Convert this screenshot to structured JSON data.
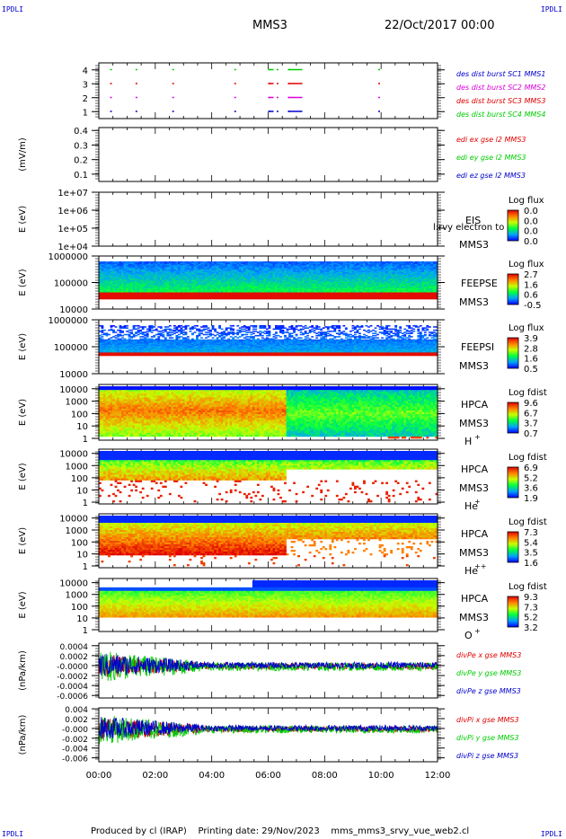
{
  "header": {
    "corner_mark": "IPDLI",
    "spacecraft": "MMS3",
    "datetime": "22/Oct/2017 00:00"
  },
  "footer": {
    "produced_by": "Produced by cl (IRAP)",
    "printing_date": "Printing date: 29/Nov/2023",
    "filename": "mms_mms3_srvy_vue_web2.cl"
  },
  "colors": {
    "red": "#e00000",
    "magenta": "#dd00dd",
    "blue": "#0000cc",
    "green": "#00cc00"
  },
  "chart_data": [
    {
      "type": "scatter",
      "panel": "burst",
      "ylabel": "",
      "ylim": [
        0.5,
        4.5
      ],
      "y_ticks": [
        "1",
        "2",
        "3",
        "4"
      ],
      "series": [
        {
          "name": "des dist burst SC1 MMS1",
          "color": "#0000cc",
          "y": 1,
          "x": [
            0.4,
            1.3,
            2.6,
            4.8,
            6.0,
            6.3,
            6.7,
            9.9
          ]
        },
        {
          "name": "des dist burst SC2 MMS2",
          "color": "#dd00dd",
          "y": 2,
          "x": [
            0.4,
            1.3,
            2.6,
            4.8,
            6.0,
            6.3,
            6.7,
            9.9
          ]
        },
        {
          "name": "des dist burst SC3 MMS3",
          "color": "#e00000",
          "y": 3,
          "x": [
            0.4,
            1.3,
            2.6,
            4.8,
            6.0,
            6.3,
            6.7,
            9.9
          ]
        },
        {
          "name": "des dist burst SC4 MMS4",
          "color": "#00cc00",
          "y": 4,
          "x": [
            0.4,
            1.3,
            2.6,
            4.8,
            6.0,
            6.3,
            6.7,
            9.9
          ]
        }
      ]
    },
    {
      "type": "line",
      "panel": "edi",
      "ylabel": "(mV/m)",
      "ylim": [
        0.05,
        0.42
      ],
      "y_ticks": [
        "0.1",
        "0.2",
        "0.3",
        "0.4"
      ],
      "series": [
        {
          "name": "edi ex gse l2 MMS3",
          "color": "#e00000"
        },
        {
          "name": "edi ey gse l2 MMS3",
          "color": "#00cc00"
        },
        {
          "name": "edi ez gse l2 MMS3",
          "color": "#0000cc"
        }
      ]
    },
    {
      "type": "heatmap",
      "panel": "eis",
      "ylabel": "E (eV)",
      "y_ticks": [
        "1e+04",
        "1e+05",
        "1e+06",
        "1e+07"
      ],
      "instrument": "EIS",
      "spacecraft": "MMS3",
      "overlay_text": "l:rvy electron to",
      "colorbar": {
        "title": "Log flux",
        "ticks": [
          "0.0",
          "0.0",
          "0.0",
          "0.0"
        ]
      }
    },
    {
      "type": "heatmap",
      "panel": "feeps_e",
      "ylabel": "E (eV)",
      "y_ticks": [
        "10000",
        "100000",
        "1000000"
      ],
      "instrument": "FEEPSE",
      "spacecraft": "MMS3",
      "colorbar": {
        "title": "Log flux",
        "ticks": [
          "2.7",
          "1.6",
          "0.6",
          "-0.5"
        ]
      }
    },
    {
      "type": "heatmap",
      "panel": "feeps_i",
      "ylabel": "E (eV)",
      "y_ticks": [
        "10000",
        "100000",
        "1000000"
      ],
      "instrument": "FEEPSI",
      "spacecraft": "MMS3",
      "colorbar": {
        "title": "Log flux",
        "ticks": [
          "3.9",
          "2.8",
          "1.6",
          "0.5"
        ]
      }
    },
    {
      "type": "heatmap",
      "panel": "hpca_h",
      "ylabel": "E (eV)",
      "y_ticks": [
        "1",
        "10",
        "100",
        "1000",
        "10000"
      ],
      "instrument": "HPCA",
      "spacecraft": "MMS3",
      "species": "H",
      "charge": "+",
      "colorbar": {
        "title": "Log fdist",
        "ticks": [
          "9.6",
          "6.7",
          "3.7",
          "0.7"
        ]
      }
    },
    {
      "type": "heatmap",
      "panel": "hpca_he",
      "ylabel": "E (eV)",
      "y_ticks": [
        "1",
        "10",
        "100",
        "1000",
        "10000"
      ],
      "instrument": "HPCA",
      "spacecraft": "MMS3",
      "species": "He",
      "charge": "+",
      "colorbar": {
        "title": "Log fdist",
        "ticks": [
          "6.9",
          "5.2",
          "3.6",
          "1.9"
        ]
      }
    },
    {
      "type": "heatmap",
      "panel": "hpca_he2",
      "ylabel": "E (eV)",
      "y_ticks": [
        "1",
        "10",
        "100",
        "1000",
        "10000"
      ],
      "instrument": "HPCA",
      "spacecraft": "MMS3",
      "species": "He",
      "charge": "++",
      "colorbar": {
        "title": "Log fdist",
        "ticks": [
          "7.3",
          "5.4",
          "3.5",
          "1.6"
        ]
      }
    },
    {
      "type": "heatmap",
      "panel": "hpca_o",
      "ylabel": "E (eV)",
      "y_ticks": [
        "1",
        "10",
        "100",
        "1000",
        "10000"
      ],
      "instrument": "HPCA",
      "spacecraft": "MMS3",
      "species": "O",
      "charge": "+",
      "colorbar": {
        "title": "Log fdist",
        "ticks": [
          "9.3",
          "7.3",
          "5.2",
          "3.2"
        ]
      }
    },
    {
      "type": "line",
      "panel": "divpe",
      "ylabel": "(nPa/km)",
      "ylim": [
        -0.00065,
        0.00045
      ],
      "y_ticks": [
        "-0.0006",
        "-0.0004",
        "-0.0002",
        "-0.0000",
        "0.0002",
        "0.0004"
      ],
      "series": [
        {
          "name": "divPe x gse MMS3",
          "color": "#e00000"
        },
        {
          "name": "divPe y gse MMS3",
          "color": "#00cc00"
        },
        {
          "name": "divPe z gse MMS3",
          "color": "#0000cc"
        }
      ]
    },
    {
      "type": "line",
      "panel": "divpi",
      "ylabel": "(nPa/km)",
      "ylim": [
        -0.0068,
        0.0042
      ],
      "y_ticks": [
        "-0.006",
        "-0.004",
        "-0.002",
        "-0.000",
        "0.002",
        "0.004"
      ],
      "series": [
        {
          "name": "divPi x gse MMS3",
          "color": "#e00000"
        },
        {
          "name": "divPi y gse MMS3",
          "color": "#00cc00"
        },
        {
          "name": "divPi z gse MMS3",
          "color": "#0000cc"
        }
      ]
    }
  ],
  "x_axis": {
    "ticks": [
      "00:00",
      "02:00",
      "04:00",
      "06:00",
      "08:00",
      "10:00",
      "12:00"
    ],
    "range_hours": [
      0,
      12
    ]
  }
}
